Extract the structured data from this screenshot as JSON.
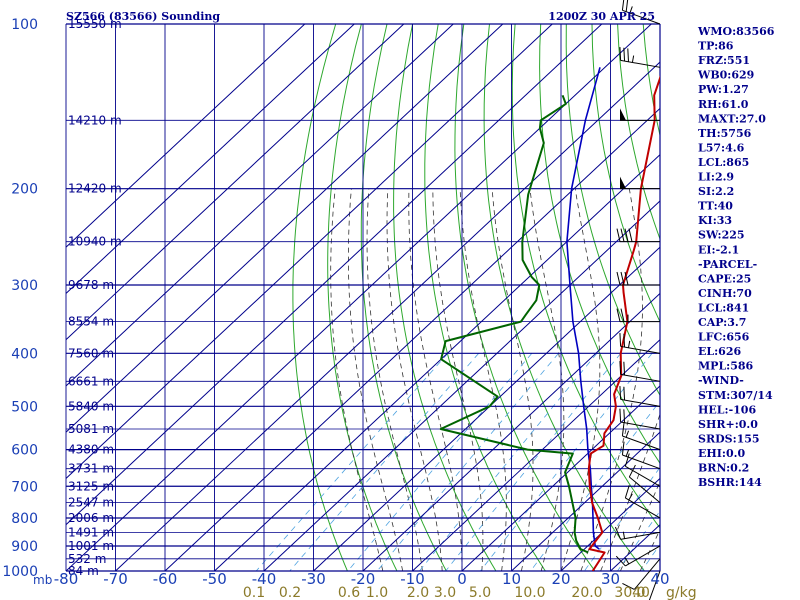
{
  "header": {
    "station": "SZ566 (83566) Sounding",
    "time": "1200Z 30 APR 25"
  },
  "colors": {
    "grid": "#00008b",
    "dry_adiabat": "#2ea82e",
    "moist_adiabat": "#333333",
    "mixing_ratio": "#4fa3e0",
    "temperature": "#c00000",
    "dewpoint": "#006400",
    "parcel": "#0000c0",
    "wind": "#000000",
    "labels": "#1a3fb5",
    "mixing_labels": "#8b7a2a"
  },
  "axis": {
    "unit_left": "mb",
    "unit_right": "g/kg"
  },
  "chart_data": {
    "type": "skew-t",
    "pressure_levels": [
      100,
      200,
      300,
      400,
      500,
      600,
      700,
      800,
      900,
      1000
    ],
    "pressure_labels": [
      "100",
      "200",
      "300",
      "400",
      "500",
      "600",
      "700",
      "800",
      "900",
      "1000"
    ],
    "temperature_ticks": [
      -80,
      -70,
      -60,
      -50,
      -40,
      -30,
      -20,
      -10,
      0,
      10,
      20,
      30,
      40
    ],
    "temperature_tick_labels": [
      "-80",
      "-70",
      "-60",
      "-50",
      "-40",
      "-30",
      "-20",
      "-10",
      "0",
      "10",
      "20",
      "30",
      "40"
    ],
    "heights": [
      {
        "p": 100,
        "label": "15550 m"
      },
      {
        "p": 150,
        "label": "14210 m"
      },
      {
        "p": 200,
        "label": "12420 m"
      },
      {
        "p": 250,
        "label": "10940 m"
      },
      {
        "p": 300,
        "label": "9678 m"
      },
      {
        "p": 350,
        "label": "8554 m"
      },
      {
        "p": 400,
        "label": "7560 m"
      },
      {
        "p": 450,
        "label": "6661 m"
      },
      {
        "p": 500,
        "label": "5840 m"
      },
      {
        "p": 550,
        "label": "5081 m"
      },
      {
        "p": 600,
        "label": "4380 m"
      },
      {
        "p": 650,
        "label": "3731 m"
      },
      {
        "p": 700,
        "label": "3125 m"
      },
      {
        "p": 750,
        "label": "2547 m"
      },
      {
        "p": 800,
        "label": "2006 m"
      },
      {
        "p": 850,
        "label": "1491 m"
      },
      {
        "p": 900,
        "label": "1001 m"
      },
      {
        "p": 950,
        "label": "532 m"
      },
      {
        "p": 1000,
        "label": "84 m"
      }
    ],
    "mixing_ratio_values": [
      0.1,
      0.2,
      0.6,
      1.0,
      2.0,
      3.0,
      5.0,
      10.0,
      20.0,
      30.0,
      40.0
    ],
    "mixing_ratio_labels": [
      "0.1",
      "0.2",
      "0.6",
      "1.0",
      "2.0",
      "3.0",
      "5.0",
      "10.0",
      "20.0",
      "30.0",
      "40"
    ],
    "temperature_profile": [
      [
        1000,
        26.4
      ],
      [
        925,
        24.8
      ],
      [
        912,
        21.0
      ],
      [
        850,
        20.0
      ],
      [
        800,
        16.0
      ],
      [
        750,
        11.5
      ],
      [
        700,
        7.5
      ],
      [
        650,
        3.5
      ],
      [
        610,
        0.6
      ],
      [
        590,
        1.5
      ],
      [
        560,
        -1.0
      ],
      [
        530,
        -2.0
      ],
      [
        500,
        -4.5
      ],
      [
        475,
        -7.5
      ],
      [
        440,
        -10.0
      ],
      [
        400,
        -15.0
      ],
      [
        350,
        -20.5
      ],
      [
        310,
        -27.5
      ],
      [
        300,
        -29.3
      ],
      [
        260,
        -34.5
      ],
      [
        250,
        -36.0
      ],
      [
        200,
        -46.5
      ],
      [
        150,
        -58.5
      ],
      [
        135,
        -64.0
      ],
      [
        100,
        -74.5
      ]
    ],
    "dewpoint_profile": [
      [
        925,
        21.5
      ],
      [
        912,
        19.2
      ],
      [
        880,
        16.5
      ],
      [
        850,
        14.4
      ],
      [
        800,
        11.5
      ],
      [
        700,
        3.3
      ],
      [
        660,
        -0.5
      ],
      [
        610,
        -3.0
      ],
      [
        600,
        -13.0
      ],
      [
        550,
        -35.0
      ],
      [
        500,
        -30.0
      ],
      [
        480,
        -30.5
      ],
      [
        410,
        -50.0
      ],
      [
        380,
        -53.0
      ],
      [
        350,
        -42.0
      ],
      [
        340,
        -42.5
      ],
      [
        320,
        -43.5
      ],
      [
        300,
        -46.2
      ],
      [
        290,
        -49.5
      ],
      [
        270,
        -55.0
      ],
      [
        250,
        -59.0
      ],
      [
        205,
        -68.0
      ],
      [
        165,
        -76.0
      ],
      [
        155,
        -80.0
      ],
      [
        150,
        -81.5
      ],
      [
        140,
        -80.0
      ],
      [
        135,
        -82.5
      ]
    ],
    "parcel_profile": [
      [
        912,
        23.0
      ],
      [
        900,
        21.5
      ],
      [
        850,
        18.2
      ],
      [
        800,
        15.0
      ],
      [
        750,
        11.6
      ],
      [
        700,
        7.8
      ],
      [
        650,
        3.8
      ],
      [
        600,
        -0.8
      ],
      [
        550,
        -5.5
      ],
      [
        500,
        -11.0
      ],
      [
        450,
        -17.0
      ],
      [
        400,
        -23.5
      ],
      [
        350,
        -31.5
      ],
      [
        300,
        -40.0
      ],
      [
        250,
        -50.0
      ],
      [
        200,
        -60.5
      ],
      [
        150,
        -72.5
      ],
      [
        120,
        -81.0
      ]
    ],
    "wind_barbs": [
      {
        "p": 1000,
        "dir": 200,
        "spd": 10
      },
      {
        "p": 950,
        "dir": 220,
        "spd": 10
      },
      {
        "p": 900,
        "dir": 240,
        "spd": 15
      },
      {
        "p": 850,
        "dir": 260,
        "spd": 15
      },
      {
        "p": 800,
        "dir": 300,
        "spd": 15
      },
      {
        "p": 750,
        "dir": 310,
        "spd": 10
      },
      {
        "p": 700,
        "dir": 300,
        "spd": 10
      },
      {
        "p": 650,
        "dir": 290,
        "spd": 15
      },
      {
        "p": 600,
        "dir": 290,
        "spd": 15
      },
      {
        "p": 550,
        "dir": 280,
        "spd": 20
      },
      {
        "p": 500,
        "dir": 280,
        "spd": 20
      },
      {
        "p": 450,
        "dir": 280,
        "spd": 20
      },
      {
        "p": 400,
        "dir": 280,
        "spd": 25
      },
      {
        "p": 350,
        "dir": 270,
        "spd": 25
      },
      {
        "p": 300,
        "dir": 270,
        "spd": 30
      },
      {
        "p": 250,
        "dir": 270,
        "spd": 40
      },
      {
        "p": 200,
        "dir": 270,
        "spd": 50
      },
      {
        "p": 150,
        "dir": 270,
        "spd": 50
      },
      {
        "p": 120,
        "dir": 280,
        "spd": 35
      },
      {
        "p": 100,
        "dir": 290,
        "spd": 25
      }
    ]
  },
  "indices": [
    "WMO:83566",
    "TP:86",
    "FRZ:551",
    "WB0:629",
    "PW:1.27",
    "RH:61.0",
    "MAXT:27.0",
    "TH:5756",
    "L57:4.6",
    "LCL:865",
    "LI:2.9",
    "SI:2.2",
    "TT:40",
    "KI:33",
    "SW:225",
    "EI:-2.1",
    "-PARCEL-",
    "CAPE:25",
    "CINH:70",
    "LCL:841",
    "CAP:3.7",
    "LFC:656",
    "EL:626",
    "MPL:586",
    "-WIND-",
    "STM:307/14",
    "HEL:-106",
    "SHR+:0.0",
    "SRDS:155",
    "EHI:0.0",
    "BRN:0.2",
    "BSHR:144"
  ]
}
